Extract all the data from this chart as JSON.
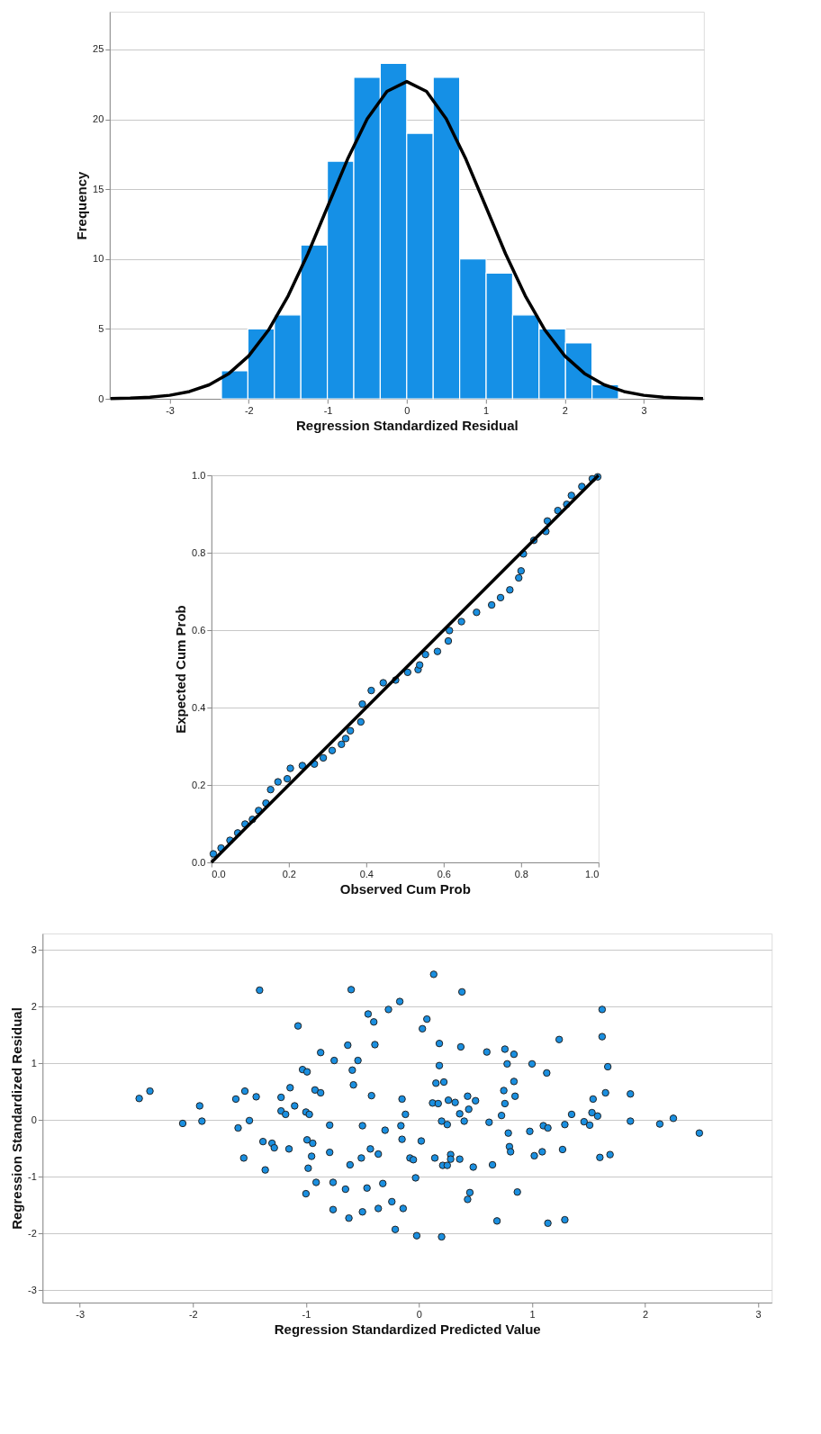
{
  "chart_data": [
    {
      "type": "histogram",
      "xlabel": "Regression Standardized Residual",
      "ylabel": "Frequency",
      "xlim": [
        -3.76,
        3.76
      ],
      "ylim": [
        0,
        27.7
      ],
      "xticks": [
        -3,
        -2,
        -1,
        0,
        1,
        2,
        3
      ],
      "yticks": [
        0,
        5,
        10,
        15,
        20,
        25
      ],
      "grid": "y",
      "bins": [
        -2.345,
        -2.01,
        -1.675,
        -1.34,
        -1.005,
        -0.67,
        -0.335,
        0,
        0.335,
        0.67,
        1.005,
        1.34,
        1.675,
        2.01,
        2.345,
        2.68
      ],
      "series": [
        {
          "color": "#1590e6",
          "values": [
            2,
            5,
            6,
            11,
            17,
            23,
            24,
            19,
            23,
            10,
            9,
            6,
            5,
            4,
            1
          ]
        },
        {
          "type": "line",
          "color": "#000000",
          "marker": "none",
          "x": [
            -3.75,
            -3.5,
            -3.25,
            -3,
            -2.75,
            -2.5,
            -2.25,
            -2,
            -1.75,
            -1.5,
            -1.25,
            -1,
            -0.75,
            -0.5,
            -0.25,
            0,
            0.25,
            0.5,
            0.75,
            1,
            1.25,
            1.5,
            1.75,
            2,
            2.25,
            2.5,
            2.75,
            3,
            3.25,
            3.5,
            3.75
          ],
          "values": [
            0.02,
            0.05,
            0.12,
            0.25,
            0.52,
            1.0,
            1.81,
            3.07,
            4.91,
            7.37,
            10.39,
            13.77,
            17.13,
            20.03,
            22.0,
            22.7,
            22.0,
            20.03,
            17.13,
            13.77,
            10.39,
            7.37,
            4.91,
            3.07,
            1.81,
            1.0,
            0.52,
            0.25,
            0.12,
            0.05,
            0.02
          ]
        }
      ]
    },
    {
      "type": "scatter",
      "xlabel": "Observed Cum Prob",
      "ylabel": "Expected Cum Prob",
      "xlim": [
        0,
        1
      ],
      "ylim": [
        0,
        1
      ],
      "xticks": [
        {
          "value": 0,
          "label": "0.0"
        },
        {
          "value": 0.2,
          "label": "0.2"
        },
        {
          "value": 0.4,
          "label": "0.4"
        },
        {
          "value": 0.6,
          "label": "0.6"
        },
        {
          "value": 0.8,
          "label": "0.8"
        },
        {
          "value": 1,
          "label": "1.0"
        }
      ],
      "yticks": [
        {
          "value": 0,
          "label": "0.0"
        },
        {
          "value": 0.2,
          "label": "0.2"
        },
        {
          "value": 0.4,
          "label": "0.4"
        },
        {
          "value": 0.6,
          "label": "0.6"
        },
        {
          "value": 0.8,
          "label": "0.8"
        },
        {
          "value": 1,
          "label": "1.0"
        }
      ],
      "grid": "y",
      "series": [
        {
          "color": "#1a8fe0",
          "marker": "circle",
          "x": [
            0.005,
            0.025,
            0.048,
            0.068,
            0.087,
            0.106,
            0.122,
            0.141,
            0.153,
            0.172,
            0.196,
            0.204,
            0.235,
            0.266,
            0.289,
            0.312,
            0.336,
            0.347,
            0.359,
            0.386,
            0.39,
            0.413,
            0.444,
            0.476,
            0.507,
            0.534,
            0.538,
            0.553,
            0.584,
            0.612,
            0.615,
            0.646,
            0.685,
            0.724,
            0.747,
            0.771,
            0.794,
            0.8,
            0.806,
            0.833,
            0.864,
            0.868,
            0.895,
            0.918,
            0.93,
            0.957,
            0.984,
            0.998
          ],
          "values": [
            0.022,
            0.037,
            0.057,
            0.076,
            0.099,
            0.111,
            0.134,
            0.153,
            0.188,
            0.208,
            0.216,
            0.243,
            0.25,
            0.254,
            0.27,
            0.289,
            0.305,
            0.32,
            0.34,
            0.363,
            0.409,
            0.444,
            0.464,
            0.471,
            0.491,
            0.498,
            0.51,
            0.537,
            0.545,
            0.572,
            0.599,
            0.622,
            0.646,
            0.665,
            0.684,
            0.704,
            0.735,
            0.753,
            0.797,
            0.832,
            0.855,
            0.882,
            0.909,
            0.925,
            0.948,
            0.971,
            0.991,
            0.996
          ]
        },
        {
          "type": "line",
          "color": "#000000",
          "marker": "none",
          "x": [
            0,
            1
          ],
          "values": [
            0,
            1
          ]
        }
      ]
    },
    {
      "type": "scatter",
      "xlabel": "Regression Standardized Predicted Value",
      "ylabel": "Regression Standardized Residual",
      "xlim": [
        -3.33,
        3.12
      ],
      "ylim": [
        -3.22,
        3.29
      ],
      "xticks": [
        -3,
        -2,
        -1,
        0,
        1,
        2,
        3
      ],
      "yticks": [
        -3,
        -2,
        -1,
        0,
        1,
        2,
        3
      ],
      "grid": "y",
      "series": [
        {
          "color": "#1a8fe0",
          "marker": "circle",
          "x": [
            -2.475,
            -2.38,
            -1.94,
            -2.09,
            -1.92,
            -1.41,
            -1.62,
            -1.54,
            -1.44,
            -1.5,
            -1.6,
            -1.55,
            -1.38,
            -1.3,
            -1.28,
            -1.36,
            -1.15,
            -1.22,
            -1.14,
            -1.22,
            -1.18,
            -1.1,
            -1.07,
            -1.03,
            -0.99,
            -1.0,
            -0.97,
            -0.92,
            -0.87,
            -0.87,
            -0.75,
            -0.63,
            -0.6,
            -0.54,
            -0.59,
            -0.58,
            -0.39,
            -0.45,
            -0.4,
            -0.27,
            -0.42,
            -0.79,
            -0.5,
            -0.3,
            -0.99,
            -0.94,
            -0.95,
            -0.98,
            -0.79,
            -0.61,
            -0.51,
            -0.43,
            -0.36,
            -0.91,
            -0.76,
            -0.65,
            -0.46,
            -0.32,
            -1.0,
            -0.76,
            -0.62,
            -0.5,
            -0.36,
            -0.24,
            -0.21,
            0.13,
            0.38,
            -0.17,
            0.07,
            0.03,
            0.18,
            0.37,
            0.6,
            0.76,
            0.84,
            1.24,
            1.62,
            1.62,
            1.67,
            0.18,
            0.15,
            0.22,
            0.78,
            1.0,
            1.13,
            0.84,
            0.75,
            0.85,
            0.76,
            0.73,
            -0.15,
            -0.12,
            0.12,
            0.17,
            0.26,
            0.32,
            0.43,
            0.5,
            0.44,
            0.36,
            0.4,
            0.2,
            0.25,
            0.62,
            -0.16,
            0.79,
            0.98,
            1.1,
            1.14,
            1.29,
            1.35,
            1.46,
            1.51,
            1.53,
            1.58,
            1.54,
            1.65,
            1.87,
            1.87,
            2.13,
            2.25,
            2.48,
            -0.15,
            0.02,
            -0.08,
            -0.05,
            0.14,
            0.28,
            0.28,
            0.36,
            0.21,
            0.25,
            0.48,
            0.65,
            0.8,
            0.81,
            1.02,
            1.09,
            1.27,
            1.6,
            1.69,
            -0.03,
            -0.14,
            -0.02,
            0.2,
            0.45,
            0.43,
            0.87,
            0.69,
            1.14,
            1.29
          ],
          "values": [
            0.38,
            0.51,
            0.25,
            -0.06,
            -0.02,
            2.29,
            0.37,
            0.51,
            0.41,
            -0.01,
            -0.14,
            -0.67,
            -0.38,
            -0.41,
            -0.49,
            -0.88,
            -0.51,
            0.4,
            0.57,
            0.16,
            0.1,
            0.25,
            1.66,
            0.89,
            0.85,
            0.14,
            0.1,
            0.53,
            0.48,
            1.19,
            1.05,
            1.32,
            2.3,
            1.05,
            0.88,
            0.62,
            1.33,
            1.87,
            1.73,
            1.95,
            0.43,
            -0.09,
            -0.1,
            -0.18,
            -0.35,
            -0.41,
            -0.64,
            -0.85,
            -0.57,
            -0.79,
            -0.67,
            -0.51,
            -0.6,
            -1.1,
            -1.1,
            -1.22,
            -1.2,
            -1.12,
            -1.3,
            -1.58,
            -1.73,
            -1.62,
            -1.56,
            -1.44,
            -1.93,
            2.57,
            2.26,
            2.09,
            1.78,
            1.61,
            1.35,
            1.29,
            1.2,
            1.25,
            1.16,
            1.42,
            1.95,
            1.47,
            0.94,
            0.96,
            0.65,
            0.67,
            0.99,
            0.99,
            0.83,
            0.68,
            0.52,
            0.42,
            0.29,
            0.08,
            0.37,
            0.1,
            0.3,
            0.29,
            0.35,
            0.31,
            0.42,
            0.34,
            0.19,
            0.11,
            -0.02,
            -0.02,
            -0.08,
            -0.04,
            -0.1,
            -0.23,
            -0.2,
            -0.1,
            -0.14,
            -0.08,
            0.1,
            -0.03,
            -0.09,
            0.13,
            0.07,
            0.37,
            0.48,
            0.46,
            -0.02,
            -0.07,
            0.03,
            -0.23,
            -0.34,
            -0.37,
            -0.67,
            -0.7,
            -0.67,
            -0.61,
            -0.69,
            -0.69,
            -0.8,
            -0.8,
            -0.83,
            -0.79,
            -0.47,
            -0.56,
            -0.63,
            -0.56,
            -0.52,
            -0.66,
            -0.61,
            -1.02,
            -1.56,
            -2.04,
            -2.06,
            -1.28,
            -1.4,
            -1.27,
            -1.78,
            -1.82,
            -1.76
          ]
        }
      ]
    }
  ]
}
